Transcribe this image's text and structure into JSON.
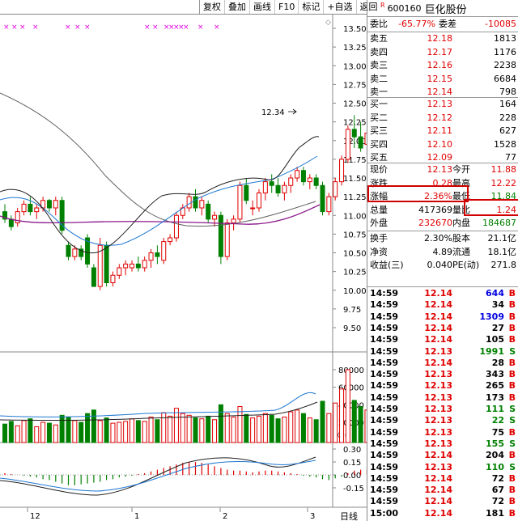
{
  "toolbar": [
    {
      "label": "复权"
    },
    {
      "label": "叠加"
    },
    {
      "label": "画线"
    },
    {
      "label": "F10"
    },
    {
      "label": "标记"
    },
    {
      "label": "+自选"
    },
    {
      "label": "返回"
    }
  ],
  "price_axis": [
    "13.50",
    "13.25",
    "13.00",
    "12.75",
    "12.50",
    "12.25",
    "12.00",
    "11.75",
    "11.50",
    "11.25",
    "11.00",
    "10.75",
    "10.50",
    "10.25",
    "10.00",
    "9.75",
    "9.50"
  ],
  "volume_axis": [
    "80000",
    "60000",
    "40000",
    "20000"
  ],
  "volume_unit": "X10",
  "macd_axis": [
    "0.30",
    "0.15",
    "0.00",
    "-0.15"
  ],
  "date_labels": [
    "12",
    "1",
    "2",
    "3"
  ],
  "period_label": "日线",
  "annotation_high": "12.34",
  "stock": {
    "badge": "R",
    "code": "600160",
    "name": "巨化股份"
  },
  "weibi": {
    "label": "委比",
    "value": "-65.77%",
    "label2": "委差",
    "value2": "-10085"
  },
  "sells": [
    {
      "label": "卖五",
      "price": "12.18",
      "vol": "1813"
    },
    {
      "label": "卖四",
      "price": "12.17",
      "vol": "1176"
    },
    {
      "label": "卖三",
      "price": "12.16",
      "vol": "2238"
    },
    {
      "label": "卖二",
      "price": "12.15",
      "vol": "6684"
    },
    {
      "label": "卖一",
      "price": "12.14",
      "vol": "798"
    }
  ],
  "buys": [
    {
      "label": "买一",
      "price": "12.13",
      "vol": "164"
    },
    {
      "label": "买二",
      "price": "12.12",
      "vol": "228"
    },
    {
      "label": "买三",
      "price": "12.11",
      "vol": "627"
    },
    {
      "label": "买四",
      "price": "12.10",
      "vol": "1528"
    },
    {
      "label": "买五",
      "price": "12.09",
      "vol": "77"
    }
  ],
  "quote": [
    {
      "l1": "现价",
      "v1": "12.13",
      "l2": "今开",
      "v2": "11.88"
    },
    {
      "l1": "涨跌",
      "v1": "0.28",
      "l2": "最高",
      "v2": "12.22"
    },
    {
      "l1": "涨幅",
      "v1": "2.36%",
      "l2": "最低",
      "v2": "11.84"
    },
    {
      "l1": "总量",
      "v1": "417369",
      "l2": "量比",
      "v2": "1.24"
    },
    {
      "l1": "外盘",
      "v1": "232670",
      "l2": "内盘",
      "v2": "184687"
    }
  ],
  "fundamentals": [
    {
      "l1": "换手",
      "v1": "2.30%",
      "l2": "股本",
      "v2": "21.1亿"
    },
    {
      "l1": "净资",
      "v1": "4.89",
      "l2": "流通",
      "v2": "18.1亿"
    },
    {
      "l1": "收益(三)",
      "v1": "0.040",
      "l2": "PE(动)",
      "v2": "271.8"
    }
  ],
  "ticks": [
    {
      "time": "14:59",
      "price": "12.14",
      "vol": "644",
      "side": "B"
    },
    {
      "time": "14:59",
      "price": "12.14",
      "vol": "34",
      "side": "B"
    },
    {
      "time": "14:59",
      "price": "12.14",
      "vol": "1309",
      "side": "B"
    },
    {
      "time": "14:59",
      "price": "12.14",
      "vol": "27",
      "side": "B"
    },
    {
      "time": "14:59",
      "price": "12.14",
      "vol": "105",
      "side": "B"
    },
    {
      "time": "14:59",
      "price": "12.13",
      "vol": "1991",
      "side": "S"
    },
    {
      "time": "14:59",
      "price": "12.14",
      "vol": "28",
      "side": "B"
    },
    {
      "time": "14:59",
      "price": "12.13",
      "vol": "343",
      "side": "B"
    },
    {
      "time": "14:59",
      "price": "12.13",
      "vol": "265",
      "side": "B"
    },
    {
      "time": "14:59",
      "price": "12.13",
      "vol": "173",
      "side": "B"
    },
    {
      "time": "14:59",
      "price": "12.13",
      "vol": "111",
      "side": "S"
    },
    {
      "time": "14:59",
      "price": "12.13",
      "vol": "22",
      "side": "S"
    },
    {
      "time": "14:59",
      "price": "12.13",
      "vol": "75",
      "side": "B"
    },
    {
      "time": "14:59",
      "price": "12.13",
      "vol": "155",
      "side": "S"
    },
    {
      "time": "14:59",
      "price": "12.14",
      "vol": "204",
      "side": "B"
    },
    {
      "time": "14:59",
      "price": "12.13",
      "vol": "110",
      "side": "S"
    },
    {
      "time": "14:59",
      "price": "12.14",
      "vol": "72",
      "side": "B"
    },
    {
      "time": "14:59",
      "price": "12.14",
      "vol": "67",
      "side": "B"
    },
    {
      "time": "14:59",
      "price": "12.14",
      "vol": "72",
      "side": "B"
    },
    {
      "time": "15:00",
      "price": "12.14",
      "vol": "181",
      "side": "B"
    }
  ],
  "colors": {
    "up": "#e00000",
    "down": "#008000",
    "ma5": "#202020",
    "ma10": "#1e78d2",
    "ma20": "#606060",
    "ma60": "#8b1a8b",
    "marker": "#e000e0"
  }
}
